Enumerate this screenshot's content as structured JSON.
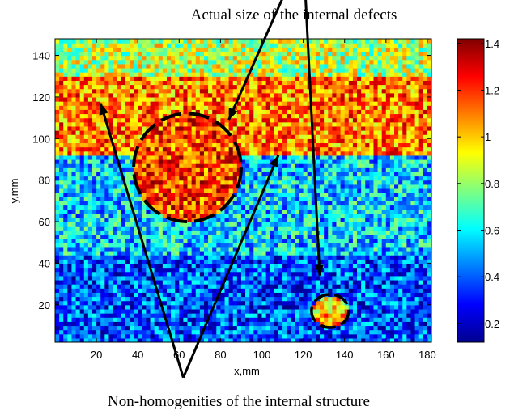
{
  "chart_data": {
    "type": "heatmap",
    "title": "",
    "xlabel": "x,mm",
    "ylabel": "y,mm",
    "xlim": [
      0,
      182
    ],
    "ylim": [
      2,
      148
    ],
    "x_ticks": [
      20,
      40,
      60,
      80,
      100,
      120,
      140,
      160,
      180
    ],
    "y_ticks": [
      20,
      40,
      60,
      80,
      100,
      120,
      140
    ],
    "colorbar": {
      "colormap": "jet",
      "range": [
        0.12,
        1.42
      ],
      "ticks": [
        0.2,
        0.4,
        0.6,
        0.8,
        1,
        1.2,
        1.4
      ],
      "tick_labels": [
        "0.2",
        "0.4",
        "0.6",
        "0.8",
        "1",
        "1.2",
        "1.4"
      ]
    },
    "regions": [
      {
        "kind": "band",
        "y_range": [
          93,
          130
        ],
        "level": 1.1
      },
      {
        "kind": "band",
        "y_range": [
          130,
          148
        ],
        "level": 0.85
      },
      {
        "kind": "band",
        "y_range": [
          45,
          93
        ],
        "level": 0.55
      },
      {
        "kind": "band",
        "y_range": [
          2,
          45
        ],
        "level": 0.38
      }
    ],
    "marked_defects": [
      {
        "center": [
          64,
          86
        ],
        "radius_x": 26,
        "radius_y": 26,
        "level": 1.18
      },
      {
        "center": [
          133,
          17
        ],
        "radius_x": 9,
        "radius_y": 8,
        "level": 1.02
      }
    ],
    "annotations": [
      {
        "text": "Actual size of the internal defects",
        "arrows_to": [
          [
            84,
            109
          ],
          [
            128,
            34
          ]
        ],
        "from": [
          120,
          190
        ]
      },
      {
        "text": "Non-homogenities of the internal structure",
        "arrows_to": [
          [
            22,
            117
          ],
          [
            108,
            92
          ]
        ],
        "from": [
          62,
          -15
        ]
      }
    ]
  }
}
